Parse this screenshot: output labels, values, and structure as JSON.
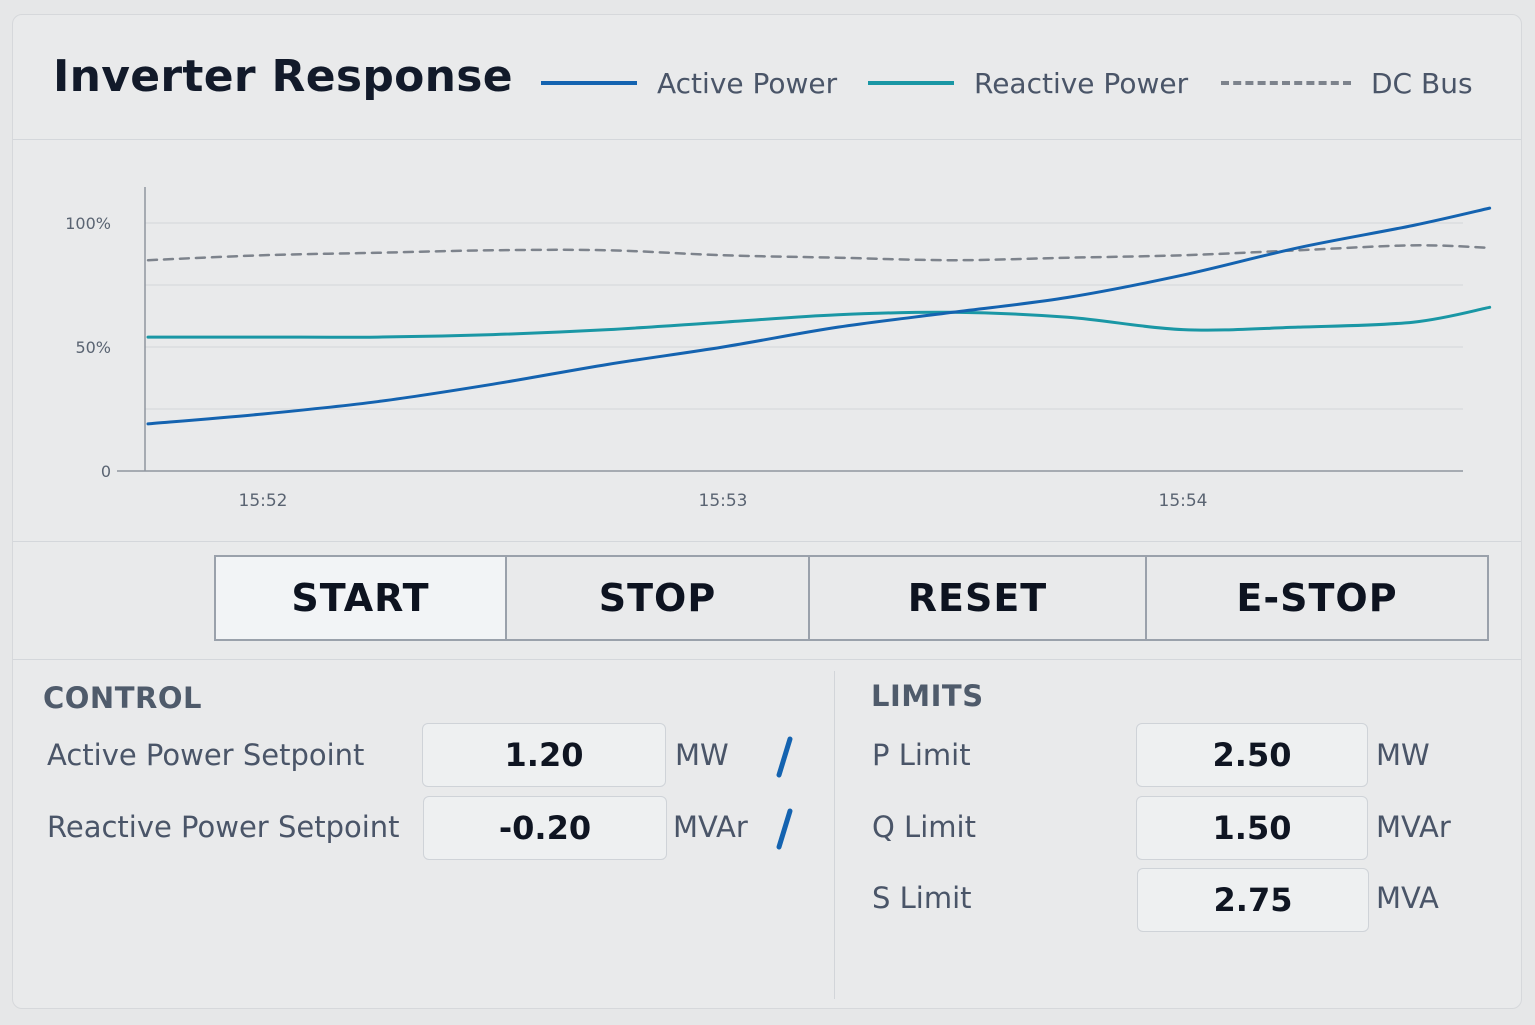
{
  "header": {
    "title": "Inverter Response",
    "legend": [
      {
        "label": "Active Power",
        "color": "#1463b0",
        "style": "solid"
      },
      {
        "label": "Reactive Power",
        "color": "#1a97a5",
        "style": "solid"
      },
      {
        "label": "DC Bus",
        "color": "#7d838c",
        "style": "dashed"
      }
    ]
  },
  "chart_data": {
    "type": "line",
    "xlabel": "",
    "ylabel": "",
    "x_ticks": [
      "15:52",
      "15:53",
      "15:54"
    ],
    "y_ticks": [
      "0",
      "50%",
      "100%"
    ],
    "ylim": [
      0,
      110
    ],
    "grid": true,
    "legend_position": "top",
    "x": [
      "15:51:45",
      "15:52:00",
      "15:52:15",
      "15:52:30",
      "15:52:45",
      "15:53:00",
      "15:53:15",
      "15:53:30",
      "15:53:45",
      "15:54:00",
      "15:54:15",
      "15:54:30",
      "15:54:40"
    ],
    "series": [
      {
        "name": "Active Power",
        "color": "#1463b0",
        "style": "solid",
        "values": [
          19,
          23,
          28,
          35,
          43,
          50,
          58,
          64,
          70,
          79,
          90,
          99,
          106
        ]
      },
      {
        "name": "Reactive Power",
        "color": "#1a97a5",
        "style": "solid",
        "values": [
          54,
          54,
          54,
          55,
          57,
          60,
          63,
          64,
          62,
          57,
          58,
          60,
          66
        ]
      },
      {
        "name": "DC Bus",
        "color": "#7d838c",
        "style": "dashed",
        "values": [
          85,
          87,
          88,
          89,
          89,
          87,
          86,
          85,
          86,
          87,
          89,
          91,
          90
        ]
      }
    ]
  },
  "buttons": {
    "start": "START",
    "stop": "STOP",
    "reset": "RESET",
    "estop": "E-STOP"
  },
  "control": {
    "title": "CONTROL",
    "rows": [
      {
        "label": "Active Power Setpoint",
        "value": "1.20",
        "unit": "MW",
        "icon": "edit-icon"
      },
      {
        "label": "Reactive Power Setpoint",
        "value": "-0.20",
        "unit": "MVAr",
        "icon": "edit-icon"
      }
    ]
  },
  "limits": {
    "title": "LIMITS",
    "rows": [
      {
        "label": "P Limit",
        "value": "2.50",
        "unit": "MW"
      },
      {
        "label": "Q Limit",
        "value": "1.50",
        "unit": "MVAr"
      },
      {
        "label": "S Limit",
        "value": "2.75",
        "unit": "MVA"
      }
    ]
  }
}
